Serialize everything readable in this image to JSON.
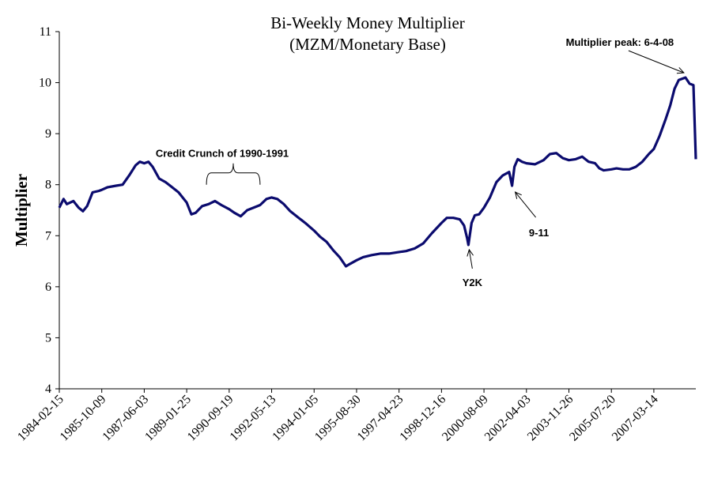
{
  "chart_data": {
    "type": "line",
    "title": "Bi-Weekly Money Multiplier",
    "subtitle": "(MZM/Monetary Base)",
    "xlabel": "",
    "ylabel": "Multiplier",
    "ylim": [
      4,
      11
    ],
    "yticks": [
      4,
      5,
      6,
      7,
      8,
      9,
      10,
      11
    ],
    "grid": false,
    "xtick_labels": [
      "1984-02-15",
      "1985-10-09",
      "1987-06-03",
      "1989-01-25",
      "1990-09-19",
      "1992-05-13",
      "1994-01-05",
      "1995-08-30",
      "1997-04-23",
      "1998-12-16",
      "2000-08-09",
      "2002-04-03",
      "2003-11-26",
      "2005-07-20",
      "2007-03-14"
    ],
    "xlim": [
      "1984-02-15",
      "2008-10-29"
    ],
    "series": [
      {
        "color": "#0b0b6e",
        "points": [
          [
            "1984-02-15",
            7.55
          ],
          [
            "1984-04-15",
            7.72
          ],
          [
            "1984-06-01",
            7.62
          ],
          [
            "1984-09-01",
            7.68
          ],
          [
            "1984-11-15",
            7.55
          ],
          [
            "1985-01-15",
            7.48
          ],
          [
            "1985-03-15",
            7.58
          ],
          [
            "1985-06-01",
            7.85
          ],
          [
            "1985-09-01",
            7.88
          ],
          [
            "1985-10-09",
            7.9
          ],
          [
            "1986-01-01",
            7.95
          ],
          [
            "1986-05-01",
            7.98
          ],
          [
            "1986-08-01",
            8.0
          ],
          [
            "1986-11-01",
            8.18
          ],
          [
            "1987-02-01",
            8.38
          ],
          [
            "1987-04-01",
            8.45
          ],
          [
            "1987-06-03",
            8.42
          ],
          [
            "1987-08-01",
            8.45
          ],
          [
            "1987-10-01",
            8.35
          ],
          [
            "1988-01-01",
            8.12
          ],
          [
            "1988-04-01",
            8.05
          ],
          [
            "1988-07-01",
            7.95
          ],
          [
            "1988-10-01",
            7.85
          ],
          [
            "1989-01-25",
            7.65
          ],
          [
            "1989-04-01",
            7.42
          ],
          [
            "1989-06-01",
            7.45
          ],
          [
            "1989-09-01",
            7.58
          ],
          [
            "1989-12-01",
            7.62
          ],
          [
            "1990-03-01",
            7.68
          ],
          [
            "1990-06-01",
            7.6
          ],
          [
            "1990-09-19",
            7.52
          ],
          [
            "1990-12-01",
            7.45
          ],
          [
            "1991-03-01",
            7.38
          ],
          [
            "1991-06-01",
            7.5
          ],
          [
            "1991-09-01",
            7.55
          ],
          [
            "1991-12-01",
            7.6
          ],
          [
            "1992-03-01",
            7.72
          ],
          [
            "1992-05-13",
            7.75
          ],
          [
            "1992-08-01",
            7.72
          ],
          [
            "1992-11-01",
            7.62
          ],
          [
            "1993-02-01",
            7.48
          ],
          [
            "1993-06-01",
            7.35
          ],
          [
            "1993-09-01",
            7.25
          ],
          [
            "1994-01-05",
            7.1
          ],
          [
            "1994-04-01",
            6.98
          ],
          [
            "1994-07-01",
            6.88
          ],
          [
            "1994-10-01",
            6.72
          ],
          [
            "1995-01-01",
            6.58
          ],
          [
            "1995-04-01",
            6.4
          ],
          [
            "1995-06-01",
            6.45
          ],
          [
            "1995-08-30",
            6.52
          ],
          [
            "1995-12-01",
            6.58
          ],
          [
            "1996-04-01",
            6.62
          ],
          [
            "1996-08-01",
            6.65
          ],
          [
            "1996-12-01",
            6.65
          ],
          [
            "1997-04-23",
            6.68
          ],
          [
            "1997-08-01",
            6.7
          ],
          [
            "1997-12-01",
            6.75
          ],
          [
            "1998-04-01",
            6.85
          ],
          [
            "1998-08-01",
            7.05
          ],
          [
            "1998-12-16",
            7.25
          ],
          [
            "1999-03-01",
            7.35
          ],
          [
            "1999-06-01",
            7.35
          ],
          [
            "1999-09-01",
            7.32
          ],
          [
            "1999-11-01",
            7.2
          ],
          [
            "1999-12-15",
            6.95
          ],
          [
            "2000-01-01",
            6.82
          ],
          [
            "2000-02-15",
            7.25
          ],
          [
            "2000-04-01",
            7.4
          ],
          [
            "2000-06-01",
            7.42
          ],
          [
            "2000-08-09",
            7.55
          ],
          [
            "2000-11-01",
            7.75
          ],
          [
            "2001-02-01",
            8.05
          ],
          [
            "2001-05-01",
            8.18
          ],
          [
            "2001-08-01",
            8.25
          ],
          [
            "2001-09-11",
            7.98
          ],
          [
            "2001-10-15",
            8.35
          ],
          [
            "2001-12-01",
            8.5
          ],
          [
            "2002-02-01",
            8.45
          ],
          [
            "2002-04-03",
            8.42
          ],
          [
            "2002-08-01",
            8.4
          ],
          [
            "2002-12-01",
            8.48
          ],
          [
            "2003-03-01",
            8.6
          ],
          [
            "2003-06-01",
            8.62
          ],
          [
            "2003-09-01",
            8.52
          ],
          [
            "2003-11-26",
            8.48
          ],
          [
            "2004-03-01",
            8.5
          ],
          [
            "2004-06-01",
            8.55
          ],
          [
            "2004-09-01",
            8.45
          ],
          [
            "2004-12-01",
            8.42
          ],
          [
            "2005-02-01",
            8.32
          ],
          [
            "2005-04-01",
            8.28
          ],
          [
            "2005-07-20",
            8.3
          ],
          [
            "2005-10-01",
            8.32
          ],
          [
            "2006-01-01",
            8.3
          ],
          [
            "2006-04-01",
            8.3
          ],
          [
            "2006-07-01",
            8.35
          ],
          [
            "2006-10-01",
            8.45
          ],
          [
            "2007-01-01",
            8.6
          ],
          [
            "2007-03-14",
            8.7
          ],
          [
            "2007-06-01",
            8.95
          ],
          [
            "2007-09-01",
            9.3
          ],
          [
            "2007-11-01",
            9.55
          ],
          [
            "2008-01-01",
            9.88
          ],
          [
            "2008-03-01",
            10.05
          ],
          [
            "2008-06-04",
            10.1
          ],
          [
            "2008-08-01",
            9.98
          ],
          [
            "2008-09-25",
            9.95
          ],
          [
            "2008-10-29",
            8.5
          ]
        ]
      }
    ],
    "annotations": [
      {
        "text": "Credit Crunch of  1990-1991",
        "type": "brace",
        "from": "1989-11-01",
        "to": "1991-12-01",
        "y": 8.0
      },
      {
        "text": "Y2K",
        "type": "arrow",
        "x": "2000-01-01",
        "y": 6.82
      },
      {
        "text": "9-11",
        "type": "arrow",
        "x": "2001-09-11",
        "y": 7.98
      },
      {
        "text": "Multiplier peak:  6-4-08",
        "type": "arrow",
        "x": "2008-06-04",
        "y": 10.1
      }
    ]
  }
}
